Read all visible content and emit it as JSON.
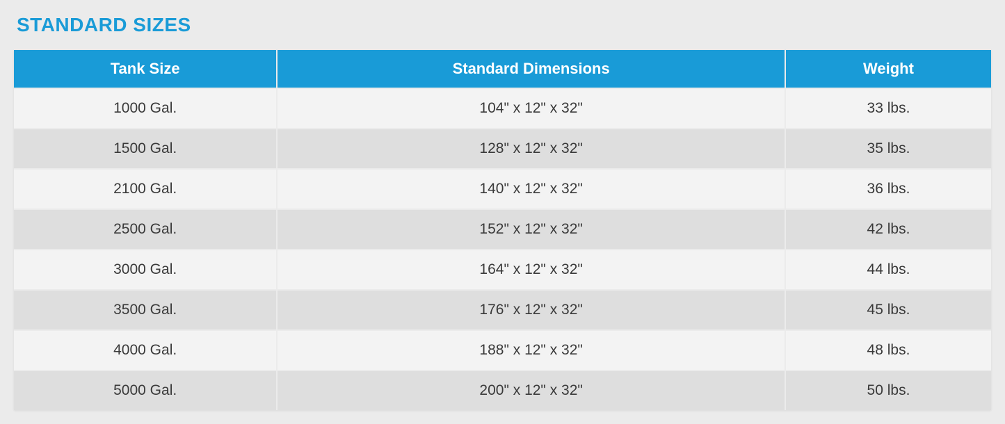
{
  "title": "STANDARD SIZES",
  "colors": {
    "title_color": "#199bd7",
    "header_bg": "#199bd7",
    "header_text": "#ffffff",
    "body_text": "#3a3a3a",
    "page_bg": "#ebebeb",
    "row_odd_bg": "#f3f3f3",
    "row_even_bg": "#dedede",
    "border_color": "#ebebeb"
  },
  "typography": {
    "title_fontsize": 28,
    "header_fontsize": 22,
    "cell_fontsize": 21,
    "font_family": "-apple-system, BlinkMacSystemFont, 'Segoe UI', Helvetica, Arial, sans-serif"
  },
  "table": {
    "type": "table",
    "columns": [
      {
        "label": "Tank Size",
        "width_pct": 27,
        "align": "center"
      },
      {
        "label": "Standard Dimensions",
        "width_pct": 52,
        "align": "center"
      },
      {
        "label": "Weight",
        "width_pct": 21,
        "align": "center"
      }
    ],
    "rows": [
      {
        "size": "1000 Gal.",
        "dimensions": "104\" x 12\" x 32\"",
        "weight": "33 lbs."
      },
      {
        "size": "1500 Gal.",
        "dimensions": "128\" x 12\" x 32\"",
        "weight": "35 lbs."
      },
      {
        "size": "2100 Gal.",
        "dimensions": "140\" x 12\" x 32\"",
        "weight": "36 lbs."
      },
      {
        "size": "2500 Gal.",
        "dimensions": "152\" x 12\" x 32\"",
        "weight": "42 lbs."
      },
      {
        "size": "3000 Gal.",
        "dimensions": "164\" x 12\" x 32\"",
        "weight": "44 lbs."
      },
      {
        "size": "3500 Gal.",
        "dimensions": "176\" x 12\" x 32\"",
        "weight": "45 lbs."
      },
      {
        "size": "4000 Gal.",
        "dimensions": "188\" x 12\" x 32\"",
        "weight": "48 lbs."
      },
      {
        "size": "5000 Gal.",
        "dimensions": "200\" x 12\" x 32\"",
        "weight": "50 lbs."
      }
    ]
  }
}
